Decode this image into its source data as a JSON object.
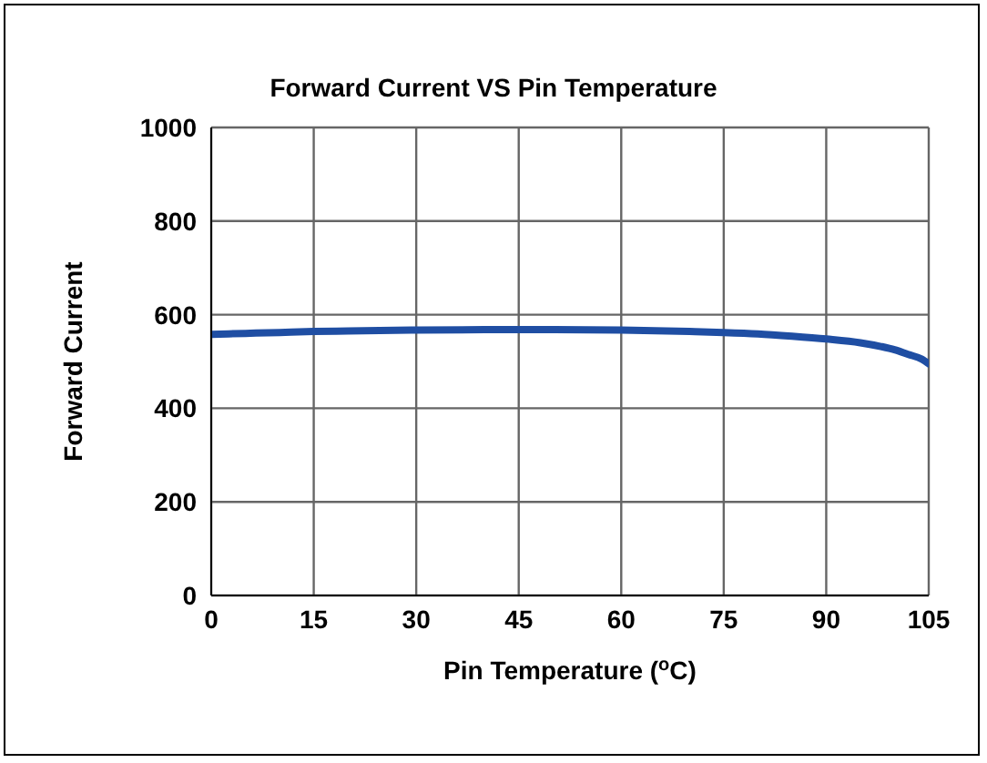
{
  "chart_data": {
    "type": "line",
    "title": "Forward Current VS Pin Temperature",
    "xlabel": "Pin Temperature ($^{o}$C)",
    "ylabel": "Forward Current",
    "x": [
      0,
      5,
      10,
      15,
      20,
      30,
      40,
      45,
      50,
      60,
      70,
      75,
      80,
      85,
      90,
      95,
      98,
      100,
      102,
      104,
      105
    ],
    "series": [
      {
        "color": "#1f4ea3",
        "values": [
          558,
          560,
          562,
          564,
          565,
          567,
          568,
          568,
          568,
          567,
          564,
          562,
          559,
          554,
          548,
          540,
          532,
          525,
          515,
          505,
          495
        ]
      }
    ],
    "xlim": [
      0,
      105
    ],
    "xticks": [
      0,
      15,
      30,
      45,
      60,
      75,
      90,
      105
    ],
    "ylim": [
      0,
      1000
    ],
    "yticks": [
      0,
      200,
      400,
      600,
      800,
      1000
    ],
    "grid": true,
    "legend": false,
    "marker": "none",
    "line_style": "solid"
  }
}
